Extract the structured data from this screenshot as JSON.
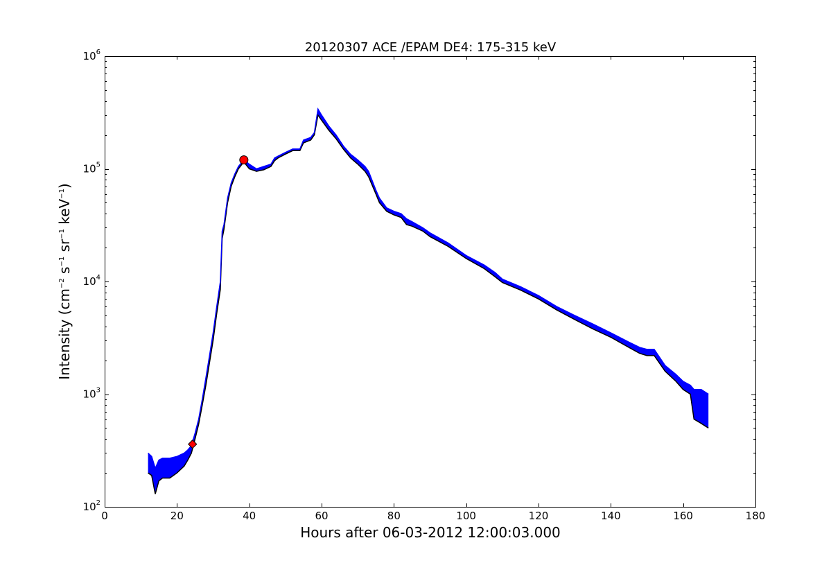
{
  "chart_data": {
    "type": "line",
    "title": "20120307 ACE /EPAM DE4: 175-315 keV",
    "xlabel": "Hours after 06-03-2012 12:00:03.000",
    "ylabel": {
      "prefix": "Intensity (cm",
      "parts": [
        {
          "base": "",
          "sup": "−2"
        },
        {
          "base": " s",
          "sup": "−1"
        },
        {
          "base": " sr",
          "sup": "−1"
        },
        {
          "base": " keV",
          "sup": "−1"
        }
      ],
      "suffix": ")"
    },
    "xlim": [
      0,
      180
    ],
    "ylim": [
      100,
      1000000
    ],
    "yscale": "log",
    "x_ticks": [
      "0",
      "20",
      "40",
      "60",
      "80",
      "100",
      "120",
      "140",
      "160",
      "180"
    ],
    "y_ticks": [
      {
        "base": "10",
        "exp": "2"
      },
      {
        "base": "10",
        "exp": "3"
      },
      {
        "base": "10",
        "exp": "4"
      },
      {
        "base": "10",
        "exp": "5"
      },
      {
        "base": "10",
        "exp": "6"
      }
    ],
    "grid": false,
    "colors": {
      "upper": "#0000ff",
      "lower": "#000000",
      "marker": "#ff0000"
    },
    "series": [
      {
        "style": "band",
        "x": [
          12,
          13,
          14,
          15,
          16,
          18,
          20,
          22,
          23,
          24,
          25,
          26,
          27,
          28,
          29,
          30,
          31,
          32,
          32.5,
          33,
          34,
          35,
          36,
          37,
          38,
          38.5,
          40,
          42,
          44,
          46,
          47,
          48,
          50,
          52,
          54,
          55,
          57,
          58,
          59,
          60,
          62,
          64,
          66,
          68,
          70,
          72,
          73,
          75,
          76,
          78,
          80,
          82,
          83.5,
          85,
          88,
          90,
          95,
          100,
          105,
          108,
          110,
          115,
          120,
          125,
          130,
          135,
          140,
          145,
          148,
          150,
          152,
          155,
          158,
          160,
          162,
          163,
          165,
          167
        ],
        "upper": [
          300,
          280,
          220,
          260,
          270,
          270,
          280,
          300,
          320,
          350,
          450,
          600,
          900,
          1400,
          2200,
          3500,
          6000,
          10000,
          28000,
          32000,
          55000,
          75000,
          90000,
          105000,
          115000,
          120000,
          110000,
          100000,
          105000,
          110000,
          125000,
          130000,
          140000,
          150000,
          150000,
          180000,
          190000,
          210000,
          340000,
          300000,
          240000,
          200000,
          160000,
          135000,
          120000,
          105000,
          95000,
          65000,
          55000,
          45000,
          42000,
          40000,
          36000,
          34000,
          30000,
          27000,
          22000,
          17000,
          14000,
          12000,
          10500,
          9000,
          7500,
          6000,
          5000,
          4200,
          3500,
          2900,
          2600,
          2500,
          2500,
          1800,
          1500,
          1300,
          1200,
          1100,
          1100,
          1000
        ],
        "lower": [
          200,
          190,
          130,
          170,
          180,
          180,
          200,
          230,
          260,
          300,
          400,
          540,
          800,
          1200,
          1900,
          3000,
          5200,
          8500,
          24000,
          29000,
          50000,
          70000,
          85000,
          100000,
          110000,
          115000,
          100000,
          95000,
          98000,
          105000,
          118000,
          125000,
          135000,
          145000,
          145000,
          170000,
          180000,
          200000,
          300000,
          270000,
          220000,
          185000,
          150000,
          125000,
          110000,
          95000,
          85000,
          60000,
          50000,
          42000,
          39000,
          37000,
          32000,
          31000,
          28000,
          25000,
          20500,
          16000,
          13000,
          11000,
          9800,
          8400,
          7000,
          5600,
          4600,
          3800,
          3200,
          2600,
          2300,
          2200,
          2200,
          1600,
          1300,
          1100,
          1000,
          600,
          550,
          500
        ]
      }
    ],
    "markers": [
      {
        "x": 24.3,
        "y": 360,
        "shape": "diamond",
        "color": "#ff0000"
      },
      {
        "x": 38.5,
        "y": 120000,
        "shape": "circle",
        "color": "#ff0000"
      }
    ]
  }
}
